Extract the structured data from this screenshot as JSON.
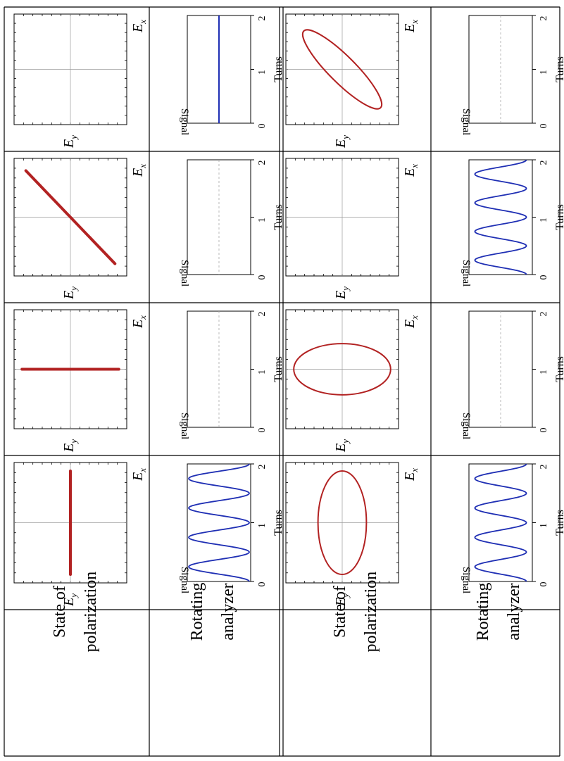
{
  "colors": {
    "polarization": "#b22222",
    "signal": "#1f2fb4",
    "frame": "#000000",
    "grid": "#9a9a9a",
    "dashed": "#aaaaaa"
  },
  "row_labels": [
    {
      "line1": "State of",
      "line2": "polarization"
    },
    {
      "line1": "Rotating",
      "line2": "analyzer"
    },
    {
      "line1": "State of",
      "line2": "polarization"
    },
    {
      "line1": "Rotating",
      "line2": "analyzer"
    }
  ],
  "axis_labels": {
    "ex": "E",
    "ex_sub": "x",
    "ey": "E",
    "ey_sub": "y",
    "signal": "Signal",
    "turns": "Turns"
  },
  "turn_ticks": [
    "0",
    "1",
    "2"
  ],
  "polarization_panels": [
    {
      "group": 1,
      "column": 1,
      "shape": "line",
      "orientation": "vertical"
    },
    {
      "group": 1,
      "column": 2,
      "shape": "line",
      "orientation": "horizontal"
    },
    {
      "group": 1,
      "column": 3,
      "shape": "line",
      "orientation": "diagonal"
    },
    {
      "group": 1,
      "column": 4,
      "shape": "none"
    },
    {
      "group": 2,
      "column": 1,
      "shape": "ellipse",
      "orientation": "vertical"
    },
    {
      "group": 2,
      "column": 2,
      "shape": "ellipse",
      "orientation": "horizontal"
    },
    {
      "group": 2,
      "column": 3,
      "shape": "none"
    },
    {
      "group": 2,
      "column": 4,
      "shape": "ellipse",
      "orientation": "diagonal"
    }
  ],
  "analyzer_panels": [
    {
      "group": 1,
      "column": 1,
      "signal": "oscillating",
      "cycles": 4,
      "modulation": 1.0
    },
    {
      "group": 1,
      "column": 2,
      "signal": "none"
    },
    {
      "group": 1,
      "column": 3,
      "signal": "none"
    },
    {
      "group": 1,
      "column": 4,
      "signal": "constant"
    },
    {
      "group": 2,
      "column": 1,
      "signal": "oscillating",
      "cycles": 4,
      "modulation": 0.85
    },
    {
      "group": 2,
      "column": 2,
      "signal": "none"
    },
    {
      "group": 2,
      "column": 3,
      "signal": "oscillating",
      "cycles": 4,
      "modulation": 0.85
    },
    {
      "group": 2,
      "column": 4,
      "signal": "none"
    }
  ]
}
